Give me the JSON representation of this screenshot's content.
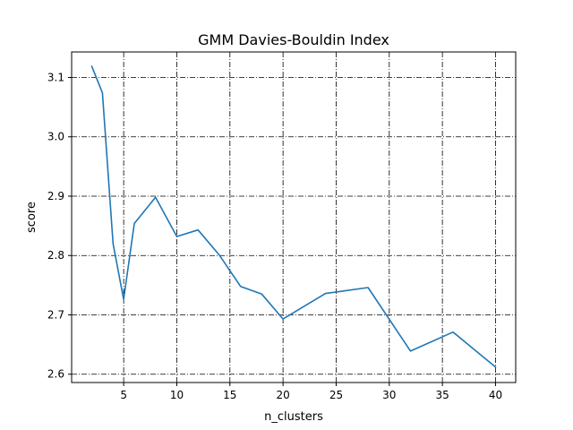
{
  "chart_data": {
    "type": "line",
    "title": "GMM Davies-Bouldin Index",
    "xlabel": "n_clusters",
    "ylabel": "score",
    "xlim": [
      0.1,
      41.9
    ],
    "ylim": [
      2.586,
      3.143
    ],
    "xticks": [
      5,
      10,
      15,
      20,
      25,
      30,
      35,
      40
    ],
    "yticks": [
      2.6,
      2.7,
      2.8,
      2.9,
      3.0,
      3.1
    ],
    "ytick_labels": [
      "2.6",
      "2.7",
      "2.8",
      "2.9",
      "3.0",
      "3.1"
    ],
    "grid": true,
    "series": [
      {
        "color": "#1f77b4",
        "x": [
          2,
          3,
          4,
          5,
          6,
          8,
          10,
          12,
          14,
          16,
          18,
          20,
          24,
          28,
          32,
          36,
          40
        ],
        "y": [
          3.119,
          3.074,
          2.82,
          2.726,
          2.854,
          2.898,
          2.832,
          2.843,
          2.801,
          2.748,
          2.735,
          2.693,
          2.736,
          2.746,
          2.639,
          2.671,
          2.612
        ]
      }
    ]
  }
}
